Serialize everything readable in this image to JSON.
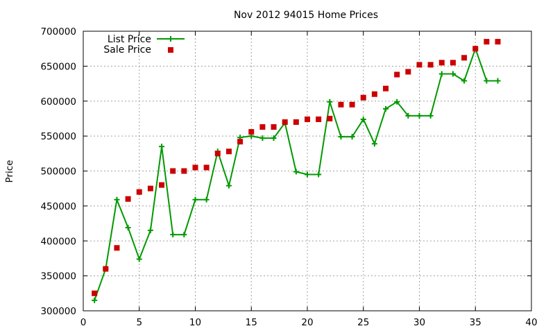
{
  "chart_data": {
    "type": "line",
    "title": "Nov 2012 94015 Home Prices",
    "xlabel": "",
    "ylabel": "Price",
    "xlim": [
      0,
      40
    ],
    "ylim": [
      300000,
      700000
    ],
    "xticks": [
      0,
      5,
      10,
      15,
      20,
      25,
      30,
      35,
      40
    ],
    "yticks": [
      300000,
      350000,
      400000,
      450000,
      500000,
      550000,
      600000,
      650000,
      700000
    ],
    "grid": true,
    "legend_position": "top-left",
    "series": [
      {
        "name": "List Price",
        "style": "lines+plus",
        "color": "#009900",
        "x": [
          1,
          2,
          3,
          4,
          5,
          6,
          7,
          8,
          9,
          10,
          11,
          12,
          13,
          14,
          15,
          16,
          17,
          18,
          19,
          20,
          21,
          22,
          23,
          24,
          25,
          26,
          27,
          28,
          29,
          30,
          31,
          32,
          33,
          34,
          35,
          36,
          37
        ],
        "y": [
          315000,
          360000,
          459000,
          419000,
          374000,
          415000,
          535000,
          409000,
          409000,
          459000,
          459000,
          528000,
          479000,
          548000,
          550000,
          547000,
          547000,
          569000,
          499000,
          495000,
          495000,
          599000,
          549000,
          549000,
          574000,
          539000,
          589000,
          599000,
          579000,
          579000,
          579000,
          639000,
          639000,
          629000,
          675000,
          629000,
          629000
        ]
      },
      {
        "name": "Sale Price",
        "style": "squares",
        "color": "#cc0000",
        "x": [
          1,
          2,
          3,
          4,
          5,
          6,
          7,
          8,
          9,
          10,
          11,
          12,
          13,
          14,
          15,
          16,
          17,
          18,
          19,
          20,
          21,
          22,
          23,
          24,
          25,
          26,
          27,
          28,
          29,
          30,
          31,
          32,
          33,
          34,
          35,
          36,
          37
        ],
        "y": [
          325000,
          360000,
          390000,
          460000,
          470000,
          475000,
          480000,
          500000,
          500000,
          505000,
          505000,
          525000,
          528000,
          542000,
          556000,
          563000,
          563000,
          570000,
          570000,
          574000,
          574000,
          575000,
          595000,
          595000,
          605000,
          610000,
          618000,
          638000,
          642000,
          652000,
          652000,
          655000,
          655000,
          662000,
          675000,
          685000,
          685000
        ]
      }
    ]
  }
}
